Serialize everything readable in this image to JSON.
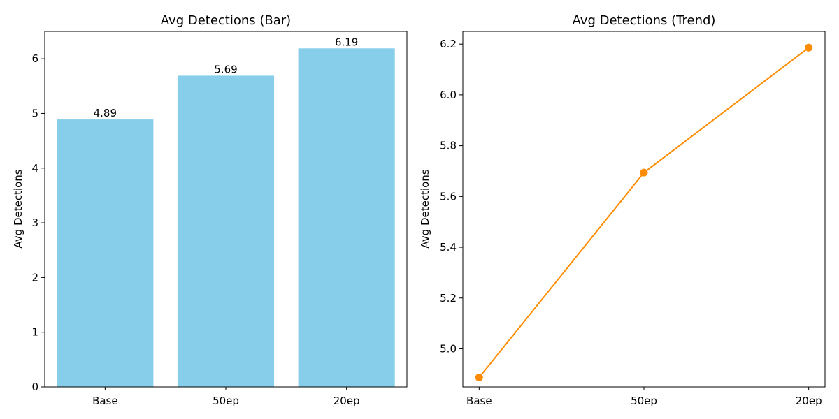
{
  "chart_data": [
    {
      "type": "bar",
      "title": "Avg Detections (Bar)",
      "categories": [
        "Base",
        "50ep",
        "20ep"
      ],
      "values": [
        4.89,
        5.69,
        6.19
      ],
      "data_labels": [
        "4.89",
        "5.69",
        "6.19"
      ],
      "xlabel": "",
      "ylabel": "Avg Detections",
      "ylim": [
        0,
        6.5
      ],
      "yticks": [
        0,
        1,
        2,
        3,
        4,
        5,
        6
      ],
      "ytick_labels": [
        "0",
        "1",
        "2",
        "3",
        "4",
        "5",
        "6"
      ],
      "color": "#87ceeb",
      "grid": false
    },
    {
      "type": "line",
      "title": "Avg Detections (Trend)",
      "categories": [
        "Base",
        "50ep",
        "20ep"
      ],
      "values": [
        4.887,
        5.694,
        6.186
      ],
      "xlabel": "",
      "ylabel": "Avg Detections",
      "ylim": [
        4.85,
        6.25
      ],
      "yticks": [
        5.0,
        5.2,
        5.4,
        5.6,
        5.8,
        6.0,
        6.2
      ],
      "ytick_labels": [
        "5.0",
        "5.2",
        "5.4",
        "5.6",
        "5.8",
        "6.0",
        "6.2"
      ],
      "color": "#ff8c00",
      "marker": "circle",
      "grid": false
    }
  ]
}
